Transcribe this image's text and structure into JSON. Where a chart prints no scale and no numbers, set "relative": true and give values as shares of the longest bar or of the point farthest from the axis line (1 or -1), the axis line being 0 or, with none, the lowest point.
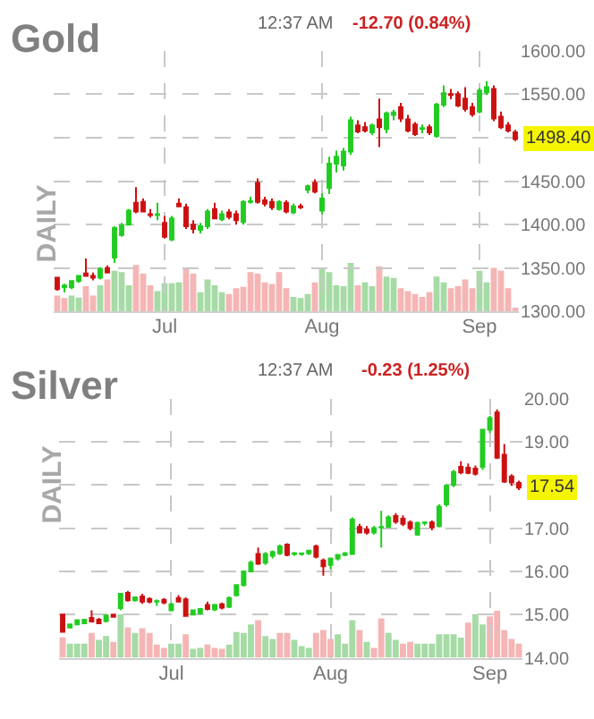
{
  "chart_data": [
    {
      "type": "candlestick",
      "title": "Gold",
      "ylabel": "DAILY",
      "annotations": [
        "12:37 AM",
        "-12.70 (0.84%)",
        {
          "text": "1498.40",
          "y": 1498.4
        }
      ],
      "categories": [
        null,
        null,
        null,
        null,
        null,
        null,
        null,
        null,
        null,
        null,
        null,
        null,
        null,
        null,
        null,
        "Jul",
        null,
        null,
        null,
        null,
        null,
        null,
        null,
        null,
        null,
        null,
        null,
        null,
        null,
        null,
        null,
        null,
        null,
        null,
        null,
        null,
        null,
        "Aug",
        null,
        null,
        null,
        null,
        null,
        null,
        null,
        null,
        null,
        null,
        null,
        null,
        null,
        null,
        null,
        null,
        null,
        null,
        null,
        null,
        null,
        "Sep",
        null,
        null,
        null,
        null,
        null
      ],
      "ohlc": [
        [
          1339,
          1340,
          1324,
          1326
        ],
        [
          1328,
          1332,
          1322,
          1330
        ],
        [
          1328,
          1336,
          1326,
          1335
        ],
        [
          1335,
          1342,
          1333,
          1341
        ],
        [
          1344,
          1361,
          1340,
          1341
        ],
        [
          1341,
          1345,
          1336,
          1339
        ],
        [
          1339,
          1351,
          1337,
          1349
        ],
        [
          1350,
          1353,
          1344,
          1345
        ],
        [
          1362,
          1398,
          1356,
          1396
        ],
        [
          1388,
          1402,
          1386,
          1399
        ],
        [
          1400,
          1418,
          1399,
          1416
        ],
        [
          1425,
          1443,
          1413,
          1415
        ],
        [
          1426,
          1430,
          1414,
          1415
        ],
        [
          1412,
          1418,
          1408,
          1411
        ],
        [
          1411,
          1425,
          1405,
          1412
        ],
        [
          1402,
          1410,
          1384,
          1386
        ],
        [
          1383,
          1410,
          1381,
          1407
        ],
        [
          1424,
          1430,
          1420,
          1421
        ],
        [
          1420,
          1424,
          1395,
          1398
        ],
        [
          1400,
          1405,
          1390,
          1395
        ],
        [
          1394,
          1402,
          1390,
          1398
        ],
        [
          1398,
          1418,
          1395,
          1415
        ],
        [
          1418,
          1425,
          1406,
          1407
        ],
        [
          1406,
          1416,
          1404,
          1412
        ],
        [
          1414,
          1418,
          1406,
          1409
        ],
        [
          1412,
          1416,
          1400,
          1405
        ],
        [
          1403,
          1428,
          1400,
          1426
        ],
        [
          1426,
          1432,
          1424,
          1427
        ],
        [
          1448,
          1453,
          1424,
          1426
        ],
        [
          1428,
          1432,
          1421,
          1424
        ],
        [
          1426,
          1430,
          1417,
          1420
        ],
        [
          1418,
          1428,
          1416,
          1426
        ],
        [
          1425,
          1428,
          1413,
          1415
        ],
        [
          1414,
          1424,
          1412,
          1421
        ],
        [
          1421,
          1424,
          1418,
          1420
        ],
        [
          1440,
          1446,
          1436,
          1444
        ],
        [
          1448,
          1452,
          1436,
          1438
        ],
        [
          1416,
          1436,
          1412,
          1430
        ],
        [
          1442,
          1478,
          1435,
          1470
        ],
        [
          1470,
          1485,
          1460,
          1478
        ],
        [
          1468,
          1488,
          1462,
          1484
        ],
        [
          1484,
          1524,
          1480,
          1520
        ],
        [
          1514,
          1520,
          1505,
          1507
        ],
        [
          1512,
          1518,
          1506,
          1508
        ],
        [
          1506,
          1516,
          1503,
          1514
        ],
        [
          1521,
          1545,
          1489,
          1512
        ],
        [
          1510,
          1530,
          1505,
          1528
        ],
        [
          1526,
          1532,
          1520,
          1529
        ],
        [
          1535,
          1540,
          1518,
          1522
        ],
        [
          1521,
          1526,
          1506,
          1508
        ],
        [
          1515,
          1518,
          1502,
          1504
        ],
        [
          1510,
          1515,
          1505,
          1511
        ],
        [
          1512,
          1515,
          1503,
          1506
        ],
        [
          1502,
          1540,
          1500,
          1538
        ],
        [
          1538,
          1560,
          1535,
          1551
        ],
        [
          1550,
          1556,
          1544,
          1549
        ],
        [
          1550,
          1553,
          1535,
          1537
        ],
        [
          1545,
          1558,
          1530,
          1533
        ],
        [
          1535,
          1540,
          1524,
          1527
        ],
        [
          1530,
          1557,
          1528,
          1554
        ],
        [
          1552,
          1565,
          1549,
          1558
        ],
        [
          1556,
          1560,
          1519,
          1522
        ],
        [
          1524,
          1530,
          1510,
          1512
        ],
        [
          1514,
          1518,
          1506,
          1508
        ],
        [
          1506,
          1509,
          1496,
          1498.4
        ]
      ],
      "colors": [
        "#cc1111",
        "#22cc22",
        "#22cc22",
        "#22cc22",
        "#cc1111",
        "#cc1111",
        "#22cc22",
        "#cc1111",
        "#22cc22",
        "#22cc22",
        "#22cc22",
        "#cc1111",
        "#cc1111",
        "#cc1111",
        "#22cc22",
        "#cc1111",
        "#22cc22",
        "#cc1111",
        "#cc1111",
        "#cc1111",
        "#22cc22",
        "#22cc22",
        "#cc1111",
        "#22cc22",
        "#cc1111",
        "#cc1111",
        "#22cc22",
        "#22cc22",
        "#cc1111",
        "#cc1111",
        "#cc1111",
        "#22cc22",
        "#cc1111",
        "#22cc22",
        "#cc1111",
        "#22cc22",
        "#cc1111",
        "#22cc22",
        "#22cc22",
        "#22cc22",
        "#22cc22",
        "#22cc22",
        "#cc1111",
        "#cc1111",
        "#22cc22",
        "#cc1111",
        "#22cc22",
        "#22cc22",
        "#cc1111",
        "#cc1111",
        "#cc1111",
        "#22cc22",
        "#cc1111",
        "#22cc22",
        "#22cc22",
        "#cc1111",
        "#cc1111",
        "#cc1111",
        "#cc1111",
        "#22cc22",
        "#22cc22",
        "#cc1111",
        "#cc1111",
        "#cc1111",
        "#cc1111"
      ],
      "ylim": [
        1300,
        1600
      ],
      "yticks": [
        {
          "value": 1300,
          "label": "1300.00"
        },
        {
          "value": 1350,
          "label": "1350.00"
        },
        {
          "value": 1400,
          "label": "1400.00"
        },
        {
          "value": 1450,
          "label": "1450.00"
        },
        {
          "value": 1500,
          "label": null
        },
        {
          "value": 1550,
          "label": "1550.00"
        },
        {
          "value": 1600,
          "label": "1600.00"
        }
      ],
      "grid": true
    },
    {
      "type": "bar",
      "relative": true,
      "categories": [
        null,
        null,
        null,
        null,
        null,
        null,
        null,
        null,
        null,
        null,
        null,
        null,
        null,
        null,
        null,
        null,
        null,
        null,
        null,
        null,
        null,
        null,
        null,
        null,
        null,
        null,
        null,
        null,
        null,
        null,
        null,
        null,
        null,
        null,
        null,
        null,
        null,
        null,
        null,
        null,
        null,
        null,
        null,
        null,
        null,
        null,
        null,
        null,
        null,
        null,
        null,
        null,
        null,
        null,
        null,
        null,
        null,
        null,
        null,
        null,
        null,
        null,
        null,
        null,
        null
      ],
      "values": [
        0.33,
        0.28,
        0.33,
        0.29,
        0.52,
        0.33,
        0.54,
        0.66,
        0.84,
        0.81,
        0.54,
        0.96,
        0.78,
        0.54,
        0.42,
        0.58,
        0.58,
        0.6,
        0.87,
        0.78,
        0.4,
        0.66,
        0.54,
        0.4,
        0.36,
        0.48,
        0.51,
        0.81,
        0.78,
        0.6,
        0.57,
        0.81,
        0.48,
        0.3,
        0.28,
        0.36,
        0.6,
        0.9,
        0.81,
        0.54,
        0.52,
        1,
        0.54,
        0.6,
        0.52,
        0.93,
        0.72,
        0.69,
        0.48,
        0.42,
        0.36,
        0.3,
        0.4,
        0.72,
        0.6,
        0.48,
        0.52,
        0.66,
        0.48,
        0.84,
        0.6,
        0.9,
        0.84,
        0.48,
        0.08
      ],
      "colors": [
        "#f5b5b5",
        "#f5b5b5",
        "#a6dba6",
        "#a6dba6",
        "#f5b5b5",
        "#f5b5b5",
        "#a6dba6",
        "#f5b5b5",
        "#a6dba6",
        "#a6dba6",
        "#a6dba6",
        "#f5b5b5",
        "#f5b5b5",
        "#f5b5b5",
        "#a6dba6",
        "#a6dba6",
        "#a6dba6",
        "#a6dba6",
        "#f5b5b5",
        "#f5b5b5",
        "#a6dba6",
        "#a6dba6",
        "#a6dba6",
        "#a6dba6",
        "#f5b5b5",
        "#f5b5b5",
        "#f5b5b5",
        "#f5b5b5",
        "#f5b5b5",
        "#f5b5b5",
        "#f5b5b5",
        "#f5b5b5",
        "#f5b5b5",
        "#a6dba6",
        "#a6dba6",
        "#a6dba6",
        "#f5b5b5",
        "#a6dba6",
        "#a6dba6",
        "#a6dba6",
        "#a6dba6",
        "#a6dba6",
        "#f5b5b5",
        "#a6dba6",
        "#a6dba6",
        "#f5b5b5",
        "#a6dba6",
        "#a6dba6",
        "#f5b5b5",
        "#f5b5b5",
        "#f5b5b5",
        "#f5b5b5",
        "#f5b5b5",
        "#a6dba6",
        "#a6dba6",
        "#f5b5b5",
        "#f5b5b5",
        "#f5b5b5",
        "#f5b5b5",
        "#a6dba6",
        "#a6dba6",
        "#f5b5b5",
        "#f5b5b5",
        "#f5b5b5",
        "#f5b5b5"
      ]
    },
    {
      "type": "candlestick",
      "title": "Silver",
      "ylabel": "DAILY",
      "annotations": [
        "12:37 AM",
        "-0.23 (1.25%)",
        {
          "text": "17.54",
          "y": 17.94
        }
      ],
      "categories": [
        null,
        null,
        null,
        null,
        null,
        null,
        null,
        null,
        null,
        null,
        null,
        null,
        null,
        null,
        null,
        "Jul",
        null,
        null,
        null,
        null,
        null,
        null,
        null,
        null,
        null,
        null,
        null,
        null,
        null,
        null,
        null,
        null,
        null,
        null,
        null,
        null,
        null,
        "Aug",
        null,
        null,
        null,
        null,
        null,
        null,
        null,
        null,
        null,
        null,
        null,
        null,
        null,
        null,
        null,
        null,
        null,
        null,
        null,
        null,
        null,
        "Sep",
        null,
        null,
        null,
        null
      ],
      "ohlc": [
        [
          15.0,
          15.02,
          14.58,
          14.6
        ],
        [
          14.7,
          14.78,
          14.68,
          14.77
        ],
        [
          14.77,
          14.88,
          14.75,
          14.87
        ],
        [
          14.8,
          14.9,
          14.78,
          14.88
        ],
        [
          14.92,
          15.1,
          14.82,
          14.84
        ],
        [
          14.88,
          14.92,
          14.78,
          14.8
        ],
        [
          14.85,
          15.0,
          14.82,
          14.98
        ],
        [
          15.0,
          15.02,
          14.93,
          14.95
        ],
        [
          15.15,
          15.5,
          15.1,
          15.48
        ],
        [
          15.5,
          15.55,
          15.3,
          15.33
        ],
        [
          15.33,
          15.42,
          15.3,
          15.4
        ],
        [
          15.42,
          15.48,
          15.25,
          15.3
        ],
        [
          15.36,
          15.4,
          15.26,
          15.3
        ],
        [
          15.3,
          15.35,
          15.2,
          15.31
        ],
        [
          15.34,
          15.38,
          15.24,
          15.28
        ],
        [
          15.1,
          15.28,
          15.08,
          15.24
        ],
        [
          15.38,
          15.45,
          15.28,
          15.3
        ],
        [
          15.35,
          15.4,
          14.95,
          14.97
        ],
        [
          15.0,
          15.12,
          14.98,
          15.1
        ],
        [
          15.03,
          15.15,
          15.0,
          15.13
        ],
        [
          15.22,
          15.3,
          15.1,
          15.13
        ],
        [
          15.12,
          15.25,
          15.08,
          15.22
        ],
        [
          15.24,
          15.28,
          15.12,
          15.16
        ],
        [
          15.18,
          15.42,
          15.15,
          15.38
        ],
        [
          15.45,
          15.7,
          15.42,
          15.68
        ],
        [
          15.68,
          16.02,
          15.65,
          16.0
        ],
        [
          16.0,
          16.25,
          15.98,
          16.2
        ],
        [
          16.4,
          16.55,
          16.15,
          16.18
        ],
        [
          16.2,
          16.45,
          16.15,
          16.4
        ],
        [
          16.36,
          16.48,
          16.3,
          16.45
        ],
        [
          16.42,
          16.62,
          16.38,
          16.58
        ],
        [
          16.62,
          16.65,
          16.35,
          16.38
        ],
        [
          16.4,
          16.45,
          16.36,
          16.42
        ],
        [
          16.4,
          16.44,
          16.36,
          16.42
        ],
        [
          16.42,
          16.5,
          16.38,
          16.48
        ],
        [
          16.58,
          16.62,
          16.3,
          16.34
        ],
        [
          16.25,
          16.3,
          15.9,
          16.12
        ],
        [
          16.15,
          16.32,
          16.05,
          16.3
        ],
        [
          16.3,
          16.4,
          16.25,
          16.38
        ],
        [
          16.38,
          16.45,
          16.35,
          16.42
        ],
        [
          16.4,
          17.25,
          16.38,
          17.2
        ],
        [
          17.03,
          17.1,
          16.88,
          16.9
        ],
        [
          16.97,
          17.05,
          16.85,
          16.9
        ],
        [
          16.9,
          17.05,
          16.85,
          17.0
        ],
        [
          17.02,
          17.4,
          16.55,
          17.03
        ],
        [
          17.03,
          17.3,
          17.0,
          17.25
        ],
        [
          17.28,
          17.35,
          17.1,
          17.15
        ],
        [
          17.22,
          17.3,
          17.05,
          17.1
        ],
        [
          17.13,
          17.18,
          16.95,
          17.0
        ],
        [
          16.85,
          17.15,
          16.82,
          17.12
        ],
        [
          17.12,
          17.16,
          17.06,
          17.13
        ],
        [
          17.13,
          17.18,
          16.95,
          17.02
        ],
        [
          17.05,
          17.55,
          17.02,
          17.5
        ],
        [
          17.55,
          18.02,
          17.5,
          17.98
        ],
        [
          18.0,
          18.35,
          17.95,
          18.3
        ],
        [
          18.42,
          18.55,
          18.25,
          18.29
        ],
        [
          18.4,
          18.5,
          18.25,
          18.28
        ],
        [
          18.38,
          18.45,
          18.22,
          18.26
        ],
        [
          18.42,
          19.3,
          18.35,
          19.28
        ],
        [
          19.28,
          19.6,
          19.2,
          19.55
        ],
        [
          19.68,
          19.75,
          18.6,
          18.63
        ],
        [
          18.7,
          18.95,
          18.05,
          18.08
        ],
        [
          18.2,
          18.25,
          17.98,
          18.06
        ],
        [
          18.05,
          18.1,
          17.88,
          17.94
        ]
      ],
      "colors": [
        "#cc1111",
        "#22cc22",
        "#22cc22",
        "#22cc22",
        "#cc1111",
        "#cc1111",
        "#22cc22",
        "#cc1111",
        "#22cc22",
        "#cc1111",
        "#22cc22",
        "#cc1111",
        "#cc1111",
        "#22cc22",
        "#cc1111",
        "#22cc22",
        "#cc1111",
        "#cc1111",
        "#22cc22",
        "#22cc22",
        "#cc1111",
        "#22cc22",
        "#cc1111",
        "#22cc22",
        "#22cc22",
        "#22cc22",
        "#22cc22",
        "#cc1111",
        "#22cc22",
        "#22cc22",
        "#22cc22",
        "#cc1111",
        "#22cc22",
        "#22cc22",
        "#22cc22",
        "#cc1111",
        "#cc1111",
        "#22cc22",
        "#22cc22",
        "#22cc22",
        "#22cc22",
        "#cc1111",
        "#cc1111",
        "#22cc22",
        "#22cc22",
        "#22cc22",
        "#cc1111",
        "#cc1111",
        "#cc1111",
        "#22cc22",
        "#22cc22",
        "#cc1111",
        "#22cc22",
        "#22cc22",
        "#22cc22",
        "#cc1111",
        "#cc1111",
        "#cc1111",
        "#22cc22",
        "#22cc22",
        "#cc1111",
        "#cc1111",
        "#cc1111",
        "#cc1111"
      ],
      "ylim": [
        14,
        20
      ],
      "yticks": [
        {
          "value": 14,
          "label": "14.00"
        },
        {
          "value": 15,
          "label": "15.00"
        },
        {
          "value": 16,
          "label": "16.00"
        },
        {
          "value": 17,
          "label": "17.00"
        },
        {
          "value": 18,
          "label": null
        },
        {
          "value": 19,
          "label": "19.00"
        },
        {
          "value": 20,
          "label": "20.00"
        }
      ],
      "grid": true
    },
    {
      "type": "bar",
      "relative": true,
      "categories": [
        null,
        null,
        null,
        null,
        null,
        null,
        null,
        null,
        null,
        null,
        null,
        null,
        null,
        null,
        null,
        null,
        null,
        null,
        null,
        null,
        null,
        null,
        null,
        null,
        null,
        null,
        null,
        null,
        null,
        null,
        null,
        null,
        null,
        null,
        null,
        null,
        null,
        null,
        null,
        null,
        null,
        null,
        null,
        null,
        null,
        null,
        null,
        null,
        null,
        null,
        null,
        null,
        null,
        null,
        null,
        null,
        null,
        null,
        null,
        null,
        null,
        null,
        null,
        null
      ],
      "values": [
        0.44,
        0.3,
        0.3,
        0.3,
        0.53,
        0.38,
        0.46,
        0.34,
        0.93,
        0.65,
        0.53,
        0.63,
        0.53,
        0.28,
        0.21,
        0.3,
        0.3,
        0.5,
        0.19,
        0.21,
        0.28,
        0.21,
        0.19,
        0.28,
        0.55,
        0.53,
        0.71,
        0.8,
        0.46,
        0.4,
        0.53,
        0.53,
        0.38,
        0.25,
        0.21,
        0.53,
        0.59,
        0.4,
        0.5,
        0.3,
        0.8,
        0.59,
        0.34,
        0.21,
        0.84,
        0.53,
        0.38,
        0.3,
        0.34,
        0.3,
        0.3,
        0.3,
        0.5,
        0.5,
        0.5,
        0.43,
        0.75,
        0.93,
        0.71,
        0.88,
        1,
        0.59,
        0.4,
        0.3
      ],
      "colors": [
        "#f5b5b5",
        "#a6dba6",
        "#a6dba6",
        "#a6dba6",
        "#f5b5b5",
        "#a6dba6",
        "#a6dba6",
        "#f5b5b5",
        "#a6dba6",
        "#f5b5b5",
        "#a6dba6",
        "#f5b5b5",
        "#f5b5b5",
        "#f5b5b5",
        "#f5b5b5",
        "#a6dba6",
        "#a6dba6",
        "#f5b5b5",
        "#a6dba6",
        "#a6dba6",
        "#f5b5b5",
        "#f5b5b5",
        "#f5b5b5",
        "#a6dba6",
        "#a6dba6",
        "#a6dba6",
        "#a6dba6",
        "#f5b5b5",
        "#a6dba6",
        "#a6dba6",
        "#f5b5b5",
        "#f5b5b5",
        "#a6dba6",
        "#a6dba6",
        "#a6dba6",
        "#f5b5b5",
        "#f5b5b5",
        "#f5b5b5",
        "#a6dba6",
        "#a6dba6",
        "#a6dba6",
        "#f5b5b5",
        "#a6dba6",
        "#f5b5b5",
        "#f5b5b5",
        "#a6dba6",
        "#a6dba6",
        "#f5b5b5",
        "#f5b5b5",
        "#a6dba6",
        "#a6dba6",
        "#a6dba6",
        "#a6dba6",
        "#a6dba6",
        "#a6dba6",
        "#a6dba6",
        "#f5b5b5",
        "#a6dba6",
        "#a6dba6",
        "#f5b5b5",
        "#f5b5b5",
        "#f5b5b5",
        "#f5b5b5",
        "#f5b5b5"
      ]
    }
  ]
}
